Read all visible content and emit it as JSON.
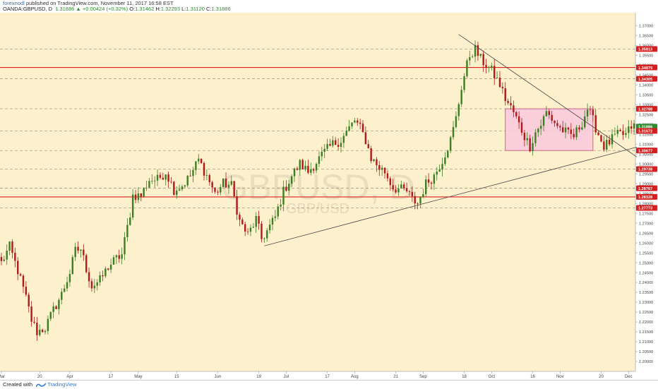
{
  "header": {
    "author": "forexnodl",
    "published_text": " published on TradingView.com, November 11, 2017 16:58 EST",
    "symbol": "OANDA:GBPUSD, D",
    "last": "1.31886",
    "change": "▲ +0.00424 (+0.32%)",
    "o_label": "O:",
    "o_value": "1.31462",
    "h_label": "H:",
    "h_value": "1.32293",
    "l_label": "L:",
    "l_value": "1.31120",
    "c_label": "C:",
    "c_value": "1.31886"
  },
  "footer": {
    "created_with": "Created with",
    "brand": "TradingView"
  },
  "colors": {
    "background": "#fdf0cd",
    "up_candle": "#3c7f23",
    "down_candle": "#b01a1a",
    "resistance_red": "#e02020",
    "dashed_level": "#9a8c7a",
    "range_box_fill": "#f9c9dd",
    "range_box_border": "#cc4477",
    "trendline": "#444444",
    "current_price_tag": "#2e8b2e",
    "price_tag_red": "#d22020",
    "watermark": "#b9ad9a"
  },
  "chart_data": {
    "type": "candlestick",
    "symbol_watermark": "GBPUSD, D",
    "symbol_watermark_sub": "GBP/USD",
    "x_ticks": [
      "Mar",
      "20",
      "Apr",
      "17",
      "May",
      "15",
      "Jun",
      "19",
      "Jul",
      "17",
      "Aug",
      "21",
      "Sep",
      "18",
      "Oct",
      "16",
      "Nov",
      "20",
      "Dec"
    ],
    "x_tick_index": [
      0,
      14,
      25,
      40,
      50,
      64,
      79,
      94,
      104,
      119,
      129,
      144,
      154,
      169,
      179,
      194,
      204,
      219,
      229
    ],
    "n_bars": 232,
    "y_range": [
      1.195,
      1.3765
    ],
    "y_ticks": [
      "1.37000",
      "1.36500",
      "1.36000",
      "1.35500",
      "1.35000",
      "1.34500",
      "1.34000",
      "1.33500",
      "1.33000",
      "1.32500",
      "1.32000",
      "1.31500",
      "1.31000",
      "1.30500",
      "1.30000",
      "1.29500",
      "1.29000",
      "1.28500",
      "1.28000",
      "1.27500",
      "1.27000",
      "1.26500",
      "1.26000",
      "1.25500",
      "1.25000",
      "1.24500",
      "1.24000",
      "1.23500",
      "1.23000",
      "1.22500",
      "1.22000",
      "1.21500",
      "1.21000",
      "1.20500",
      "1.20000"
    ],
    "price_tags": [
      {
        "label": "1.35813",
        "value": 1.35813,
        "color": "red"
      },
      {
        "label": "1.34879",
        "value": 1.34879,
        "color": "red"
      },
      {
        "label": "1.34305",
        "value": 1.34305,
        "color": "red"
      },
      {
        "label": "1.32788",
        "value": 1.32788,
        "color": "red"
      },
      {
        "label": "1.31886",
        "value": 1.31886,
        "color": "green"
      },
      {
        "label": "1.31672",
        "value": 1.31672,
        "color": "red"
      },
      {
        "label": "1.30677",
        "value": 1.30677,
        "color": "red"
      },
      {
        "label": "1.29738",
        "value": 1.29738,
        "color": "red"
      },
      {
        "label": "1.28767",
        "value": 1.28767,
        "color": "red"
      },
      {
        "label": "1.28328",
        "value": 1.28328,
        "color": "red"
      },
      {
        "label": "1.27773",
        "value": 1.27773,
        "color": "red"
      }
    ],
    "solid_levels": [
      1.34879,
      1.28328
    ],
    "dashed_levels": [
      1.35813,
      1.34305,
      1.32788,
      1.31672,
      1.30677,
      1.29738,
      1.28767,
      1.27773
    ],
    "range_box": {
      "start_bar": 184,
      "end_bar": 216,
      "top": 1.32788,
      "bottom": 1.30677
    },
    "trendlines": [
      {
        "from": {
          "bar": 96,
          "price": 1.2585
        },
        "to": {
          "bar": 232,
          "price": 1.3085
        }
      },
      {
        "from": {
          "bar": 167,
          "price": 1.3655
        },
        "to": {
          "bar": 232,
          "price": 1.3035
        }
      }
    ],
    "anchors": [
      [
        0,
        1.25
      ],
      [
        3,
        1.258
      ],
      [
        6,
        1.246
      ],
      [
        9,
        1.232
      ],
      [
        11,
        1.221
      ],
      [
        13,
        1.215
      ],
      [
        16,
        1.217
      ],
      [
        19,
        1.226
      ],
      [
        22,
        1.234
      ],
      [
        25,
        1.245
      ],
      [
        27,
        1.256
      ],
      [
        29,
        1.257
      ],
      [
        31,
        1.247
      ],
      [
        33,
        1.238
      ],
      [
        36,
        1.241
      ],
      [
        39,
        1.248
      ],
      [
        42,
        1.252
      ],
      [
        44,
        1.254
      ],
      [
        47,
        1.275
      ],
      [
        48,
        1.284
      ],
      [
        51,
        1.284
      ],
      [
        54,
        1.292
      ],
      [
        57,
        1.292
      ],
      [
        60,
        1.296
      ],
      [
        63,
        1.287
      ],
      [
        66,
        1.289
      ],
      [
        69,
        1.294
      ],
      [
        72,
        1.302
      ],
      [
        75,
        1.294
      ],
      [
        78,
        1.285
      ],
      [
        81,
        1.29
      ],
      [
        84,
        1.289
      ],
      [
        87,
        1.271
      ],
      [
        90,
        1.264
      ],
      [
        93,
        1.272
      ],
      [
        95,
        1.262
      ],
      [
        97,
        1.266
      ],
      [
        100,
        1.273
      ],
      [
        103,
        1.286
      ],
      [
        106,
        1.294
      ],
      [
        109,
        1.3
      ],
      [
        112,
        1.296
      ],
      [
        115,
        1.301
      ],
      [
        118,
        1.306
      ],
      [
        121,
        1.31
      ],
      [
        124,
        1.312
      ],
      [
        127,
        1.318
      ],
      [
        129,
        1.322
      ],
      [
        131,
        1.318
      ],
      [
        133,
        1.312
      ],
      [
        135,
        1.303
      ],
      [
        138,
        1.298
      ],
      [
        140,
        1.296
      ],
      [
        143,
        1.288
      ],
      [
        146,
        1.287
      ],
      [
        148,
        1.286
      ],
      [
        150,
        1.282
      ],
      [
        152,
        1.28
      ],
      [
        155,
        1.29
      ],
      [
        158,
        1.294
      ],
      [
        161,
        1.302
      ],
      [
        164,
        1.312
      ],
      [
        166,
        1.323
      ],
      [
        168,
        1.339
      ],
      [
        170,
        1.35
      ],
      [
        171,
        1.355
      ],
      [
        173,
        1.358
      ],
      [
        175,
        1.353
      ],
      [
        177,
        1.35
      ],
      [
        179,
        1.347
      ],
      [
        182,
        1.34
      ],
      [
        184,
        1.333
      ],
      [
        187,
        1.326
      ],
      [
        189,
        1.32
      ],
      [
        191,
        1.314
      ],
      [
        193,
        1.309
      ],
      [
        195,
        1.316
      ],
      [
        197,
        1.32
      ],
      [
        199,
        1.326
      ],
      [
        202,
        1.321
      ],
      [
        204,
        1.318
      ],
      [
        207,
        1.315
      ],
      [
        209,
        1.314
      ],
      [
        212,
        1.321
      ],
      [
        214,
        1.328
      ],
      [
        216,
        1.322
      ],
      [
        218,
        1.315
      ],
      [
        220,
        1.309
      ],
      [
        222,
        1.311
      ],
      [
        224,
        1.314
      ],
      [
        226,
        1.315
      ],
      [
        228,
        1.3147
      ],
      [
        230,
        1.3189
      ]
    ]
  }
}
